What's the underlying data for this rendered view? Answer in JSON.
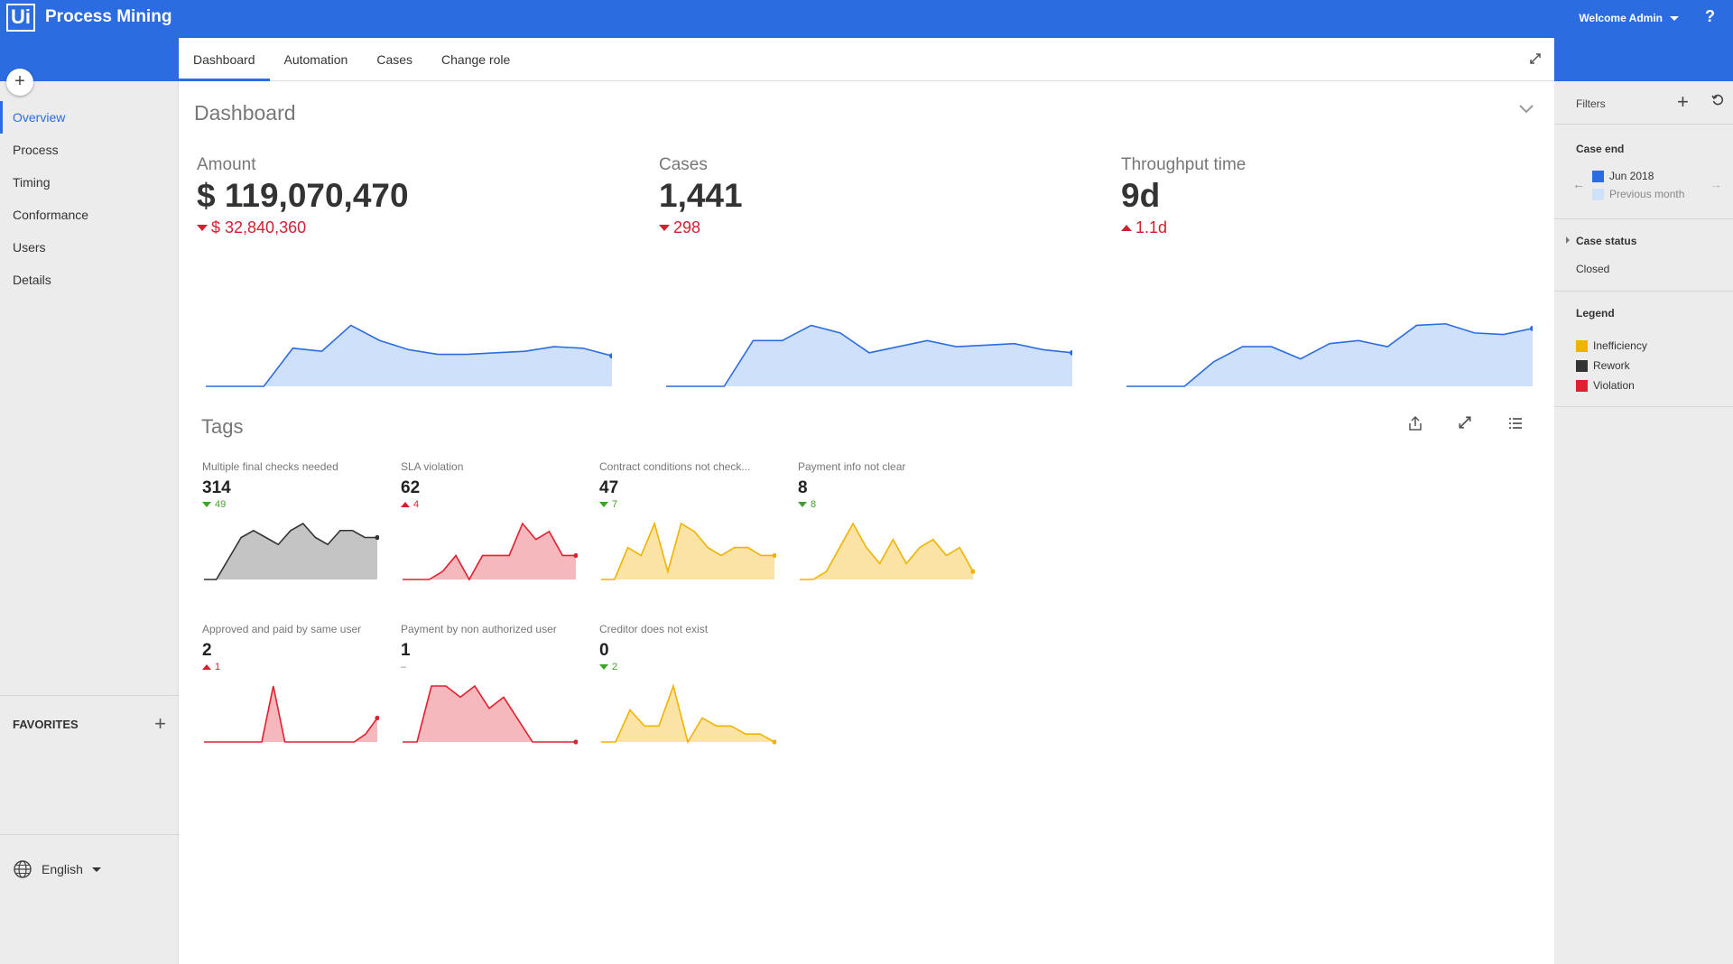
{
  "app": {
    "logo_text": "Ui",
    "title": "Process Mining",
    "welcome": "Welcome Admin",
    "help": "?"
  },
  "sidebar": {
    "add": "+",
    "items": [
      {
        "label": "Overview"
      },
      {
        "label": "Process"
      },
      {
        "label": "Timing"
      },
      {
        "label": "Conformance"
      },
      {
        "label": "Users"
      },
      {
        "label": "Details"
      }
    ],
    "favorites_label": "FAVORITES",
    "favorites_add": "+",
    "language": "English"
  },
  "tabs": [
    {
      "label": "Dashboard"
    },
    {
      "label": "Automation"
    },
    {
      "label": "Cases"
    },
    {
      "label": "Change role"
    }
  ],
  "dashboard": {
    "title": "Dashboard",
    "kpis": [
      {
        "label": "Amount",
        "value": "$ 119,070,470",
        "delta": "$ 32,840,360",
        "direction": "down"
      },
      {
        "label": "Cases",
        "value": "1,441",
        "delta": "298",
        "direction": "down"
      },
      {
        "label": "Throughput time",
        "value": "9d",
        "delta": "1.1d",
        "direction": "up"
      }
    ]
  },
  "tags": {
    "title": "Tags",
    "items": [
      {
        "label": "Multiple final checks needed",
        "value": "314",
        "delta": "49",
        "direction": "down",
        "color": "#333333",
        "fill": "#c4c4c4",
        "series": [
          0,
          0,
          3,
          6,
          7,
          6,
          5,
          7,
          8,
          6,
          5,
          7,
          7,
          6,
          6
        ]
      },
      {
        "label": "SLA violation",
        "value": "62",
        "delta": "4",
        "direction": "up",
        "color": "#e0202e",
        "fill": "#f5b8bc",
        "series": [
          0,
          0,
          0,
          1,
          3,
          0,
          3,
          3,
          3,
          7,
          5,
          6,
          3,
          3
        ]
      },
      {
        "label": "Contract conditions not check...",
        "value": "47",
        "delta": "7",
        "direction": "down",
        "color": "#f0b400",
        "fill": "#fbe3a6",
        "series": [
          0,
          0,
          4,
          3,
          7,
          1,
          7,
          6,
          4,
          3,
          4,
          4,
          3,
          3
        ]
      },
      {
        "label": "Payment info not clear",
        "value": "8",
        "delta": "8",
        "direction": "down",
        "color": "#f0b400",
        "fill": "#fbe3a6",
        "series": [
          0,
          0,
          1,
          4,
          7,
          4,
          2,
          5,
          2,
          4,
          5,
          3,
          4,
          1
        ]
      },
      {
        "label": "Approved and paid by same user",
        "value": "2",
        "delta": "1",
        "direction": "up",
        "color": "#e0202e",
        "fill": "#f5b8bc",
        "series": [
          0,
          0,
          0,
          0,
          0,
          0,
          7,
          0,
          0,
          0,
          0,
          0,
          0,
          0,
          1,
          3
        ]
      },
      {
        "label": "Payment by non authorized user",
        "value": "1",
        "delta": "–",
        "direction": "flat",
        "color": "#e0202e",
        "fill": "#f5b8bc",
        "series": [
          0,
          0,
          5,
          5,
          4,
          5,
          3,
          4,
          2,
          0,
          0,
          0,
          0
        ]
      },
      {
        "label": "Creditor does not exist",
        "value": "0",
        "delta": "2",
        "direction": "down",
        "color": "#f0b400",
        "fill": "#fbe3a6",
        "series": [
          0,
          0,
          4,
          2,
          2,
          7,
          0,
          3,
          2,
          2,
          1,
          1,
          0
        ]
      }
    ]
  },
  "filters": {
    "title": "Filters",
    "add": "+",
    "case_end_label": "Case end",
    "current_period": "Jun 2018",
    "previous_period": "Previous month",
    "current_color": "#2b6de0",
    "previous_color": "#cfe0fb",
    "case_status_label": "Case status",
    "case_status_value": "Closed",
    "legend_label": "Legend",
    "legend": [
      {
        "label": "Inefficiency",
        "color": "#f0b400"
      },
      {
        "label": "Rework",
        "color": "#333333"
      },
      {
        "label": "Violation",
        "color": "#e0202e"
      }
    ]
  },
  "kpi_series": [
    [
      0,
      0,
      0,
      2.5,
      2.3,
      4,
      3,
      2.4,
      2.1,
      2.1,
      2.2,
      2.3,
      2.6,
      2.5,
      2
    ],
    [
      0,
      0,
      0,
      3,
      3,
      4,
      3.5,
      2.2,
      2.6,
      3,
      2.6,
      2.7,
      2.8,
      2.4,
      2.2
    ],
    [
      0,
      0,
      0,
      1.6,
      2.6,
      2.6,
      1.8,
      2.8,
      3,
      2.6,
      4,
      4.1,
      3.5,
      3.4,
      3.8
    ]
  ]
}
